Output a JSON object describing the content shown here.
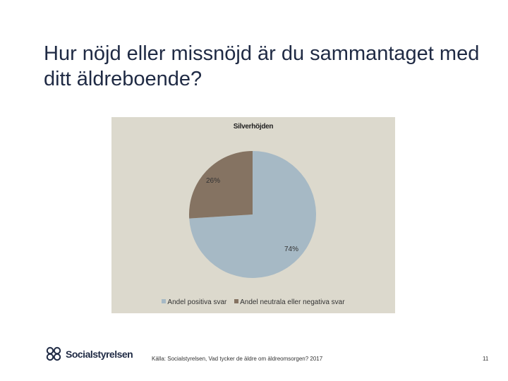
{
  "slide": {
    "title": "Hur nöjd eller missnöjd är du sammantaget med ditt äldreboende?",
    "source": "Källa: Socialstyrelsen, Vad tycker de äldre om äldreomsorgen? 2017",
    "page_number": "11",
    "logo_text": "Socialstyrelsen"
  },
  "chart_data": {
    "type": "pie",
    "title": "Silverhöjden",
    "slices": [
      {
        "name": "Andel positiva svar",
        "value": 74,
        "label": "74%",
        "color": "#a6b9c5"
      },
      {
        "name": "Andel neutrala eller negativa svar",
        "value": 26,
        "label": "26%",
        "color": "#857362"
      }
    ],
    "legend_position": "bottom",
    "background": "#dcd9cd"
  }
}
